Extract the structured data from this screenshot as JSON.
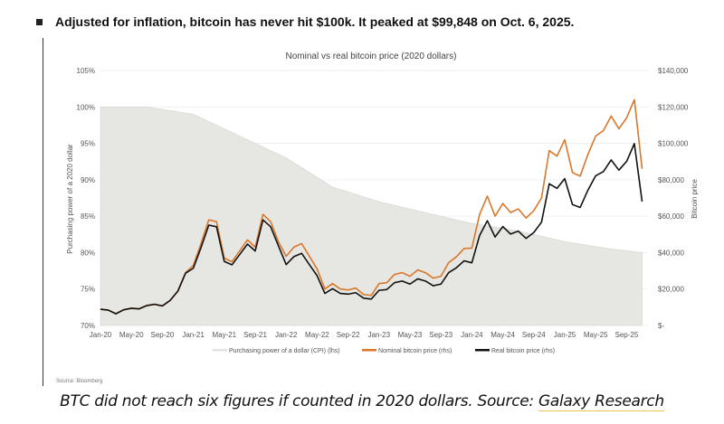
{
  "headline": "Adjusted for inflation, bitcoin has never hit $100k. It peaked at $99,848 on Oct. 6, 2025.",
  "source_note": "Source: Bloomberg",
  "caption": {
    "text": "BTC did not reach six figures if counted in 2020 dollars. Source: ",
    "link": "Galaxy Research"
  },
  "chart_data": {
    "type": "line",
    "title": "Nominal vs real bitcoin price (2020 dollars)",
    "ylabel_left": "Purchasing power of a 2020 dollar",
    "ylabel_right": "Bitcoin price",
    "ylim_left": [
      70,
      105
    ],
    "ylim_right": [
      0,
      140000
    ],
    "yticks_left": [
      "70%",
      "75%",
      "80%",
      "85%",
      "90%",
      "95%",
      "100%",
      "105%"
    ],
    "yticks_right": [
      "$-",
      "$20,000",
      "$40,000",
      "$60,000",
      "$80,000",
      "$100,000",
      "$120,000",
      "$140,000"
    ],
    "xticks": [
      "Jan-20",
      "May-20",
      "Sep-20",
      "Jan-21",
      "May-21",
      "Sep-21",
      "Jan-22",
      "May-22",
      "Sep-22",
      "Jan-23",
      "May-23",
      "Sep-23",
      "Jan-24",
      "May-24",
      "Sep-24",
      "Jan-25",
      "May-25",
      "Sep-25"
    ],
    "grid": true,
    "legend_position": "bottom",
    "x_start": "Jan-20",
    "x_interval": "monthly",
    "series": [
      {
        "name": "Purchasing power of a dollar (CPI) (lhs)",
        "color": "#e6e6e2",
        "axis": "left",
        "x_months": [
          0,
          6,
          12,
          18,
          24,
          30,
          36,
          42,
          48,
          54,
          60,
          66,
          70
        ],
        "values": [
          100,
          100,
          99,
          96,
          93,
          89,
          87,
          85.5,
          84,
          83,
          81.5,
          80.5,
          80
        ]
      },
      {
        "name": "Nominal bitcoin price (rhs)",
        "color": "#d9772b",
        "axis": "right",
        "values": [
          9000,
          8500,
          6500,
          8700,
          9500,
          9200,
          11000,
          11700,
          10800,
          13800,
          19000,
          29000,
          33000,
          45000,
          58000,
          57000,
          37000,
          35000,
          41000,
          47000,
          43000,
          61000,
          57000,
          46000,
          38000,
          43000,
          45000,
          38000,
          31000,
          20000,
          23000,
          20000,
          19500,
          20500,
          17000,
          16500,
          23000,
          23500,
          28000,
          29000,
          27000,
          30500,
          29000,
          26000,
          27000,
          34500,
          37700,
          42300,
          42500,
          61000,
          71000,
          60000,
          67000,
          62000,
          64000,
          59000,
          63000,
          70000,
          96000,
          93000,
          102000,
          84000,
          82000,
          94000,
          104000,
          107000,
          115000,
          108000,
          114000,
          124000,
          86000
        ]
      },
      {
        "name": "Real bitcoin price (rhs)",
        "color": "#111111",
        "axis": "right",
        "values": [
          8900,
          8400,
          6400,
          8600,
          9400,
          9100,
          10900,
          11600,
          10700,
          13700,
          18800,
          28700,
          31400,
          42800,
          55100,
          54200,
          35200,
          33300,
          39000,
          44700,
          40900,
          58000,
          54200,
          43700,
          33400,
          37800,
          39600,
          33400,
          27300,
          17600,
          20200,
          17600,
          17200,
          18000,
          15000,
          14500,
          19300,
          19700,
          23500,
          24400,
          22700,
          25600,
          24400,
          21800,
          22700,
          29000,
          31700,
          35500,
          34400,
          49400,
          57500,
          48600,
          54300,
          50200,
          51800,
          47800,
          51000,
          56700,
          77800,
          75300,
          80600,
          66400,
          64800,
          74300,
          82200,
          84500,
          90900,
          85300,
          90100,
          99848,
          68000
        ]
      }
    ]
  }
}
